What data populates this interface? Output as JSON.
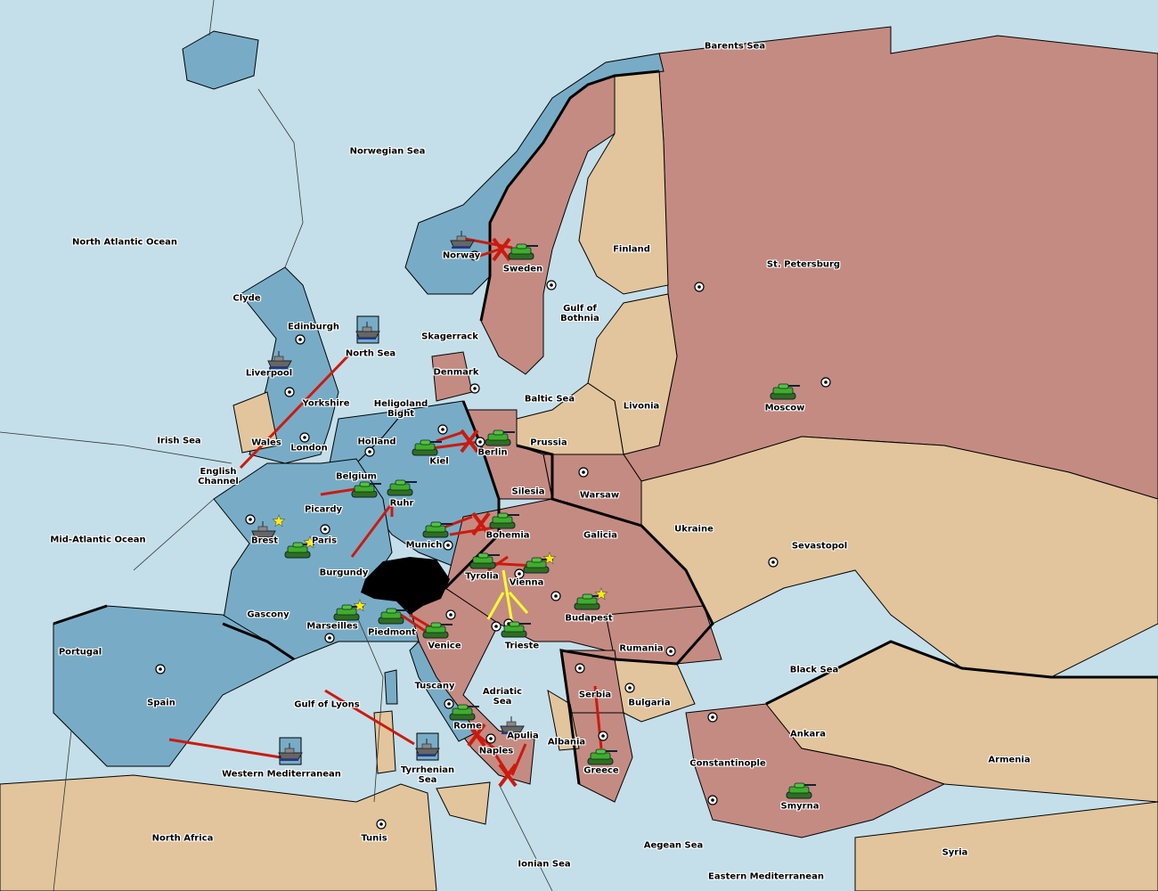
{
  "colors": {
    "sea": "#c4dfea",
    "france_blue": "#78acc6",
    "pink_power": "#c48b82",
    "neutral": "#e2c59c",
    "move_arrow": "#cc1a0e",
    "support_line": "#ffff33",
    "impassable": "#000000",
    "star": "#ffee00"
  },
  "labels": [
    "Barents Sea",
    "Norwegian Sea",
    "North Atlantic Ocean",
    "Clyde",
    "Edinburgh",
    "Liverpool",
    "Yorkshire",
    "North Sea",
    "Skagerrack",
    "Denmark",
    "Heligoland\nBight",
    "Holland",
    "Irish Sea",
    "Wales",
    "London",
    "English\nChannel",
    "Belgium",
    "Kiel",
    "Berlin",
    "Prussia",
    "Baltic Sea",
    "Livonia",
    "Moscow",
    "Finland",
    "St. Petersburg",
    "Sweden",
    "Norway",
    "Gulf of\nBothnia",
    "Silesia",
    "Warsaw",
    "Ukraine",
    "Sevastopol",
    "Galicia",
    "Bohemia",
    "Munich",
    "Ruhr",
    "Picardy",
    "Brest",
    "Paris",
    "Mid-Atlantic Ocean",
    "Burgundy",
    "Tyrolia",
    "Vienna",
    "Budapest",
    "Gascony",
    "Marseilles",
    "Piedmont",
    "Venice",
    "Trieste",
    "Rumania",
    "Black Sea",
    "Portugal",
    "Spain",
    "Tuscany",
    "Adriatic\nSea",
    "Serbia",
    "Bulgaria",
    "Gulf of Lyons",
    "Rome",
    "Apulia",
    "Albania",
    "Naples",
    "Ankara",
    "Armenia",
    "Constantinople",
    "Greece",
    "Western Mediterranean",
    "Tyrrhenian\nSea",
    "Smyrna",
    "North Africa",
    "Tunis",
    "Aegean Sea",
    "Ionian Sea",
    "Syria",
    "Eastern Mediterranean"
  ],
  "units": [
    {
      "type": "fleet-icon",
      "location": "Norway"
    },
    {
      "type": "fleet-icon",
      "location": "Liverpool"
    },
    {
      "type": "fleet-icon",
      "location": "North Sea",
      "retreat_box": true
    },
    {
      "type": "fleet-icon",
      "location": "Brest"
    },
    {
      "type": "fleet-icon",
      "location": "Western Mediterranean",
      "retreat_box": true
    },
    {
      "type": "fleet-icon",
      "location": "Tyrrhenian Sea",
      "retreat_box": true
    },
    {
      "type": "fleet-icon",
      "location": "Apulia"
    },
    {
      "type": "army-tank-icon",
      "location": "Sweden"
    },
    {
      "type": "army-tank-icon",
      "location": "Moscow"
    },
    {
      "type": "army-tank-icon",
      "location": "Berlin"
    },
    {
      "type": "army-tank-icon",
      "location": "Kiel"
    },
    {
      "type": "army-tank-icon",
      "location": "Belgium"
    },
    {
      "type": "army-tank-icon",
      "location": "Ruhr"
    },
    {
      "type": "army-tank-icon",
      "location": "Munich"
    },
    {
      "type": "army-tank-icon",
      "location": "Bohemia"
    },
    {
      "type": "army-tank-icon",
      "location": "Tyrolia"
    },
    {
      "type": "army-tank-icon",
      "location": "Vienna"
    },
    {
      "type": "army-tank-icon",
      "location": "Budapest"
    },
    {
      "type": "army-tank-icon",
      "location": "Paris"
    },
    {
      "type": "army-tank-icon",
      "location": "Marseilles"
    },
    {
      "type": "army-tank-icon",
      "location": "Piedmont"
    },
    {
      "type": "army-tank-icon",
      "location": "Venice"
    },
    {
      "type": "army-tank-icon",
      "location": "Trieste"
    },
    {
      "type": "army-tank-icon",
      "location": "Rome"
    },
    {
      "type": "army-tank-icon",
      "location": "Greece"
    },
    {
      "type": "army-tank-icon",
      "location": "Smyrna"
    }
  ],
  "stars": [
    "Brest",
    "Paris",
    "Vienna",
    "Budapest",
    "Marseilles"
  ]
}
